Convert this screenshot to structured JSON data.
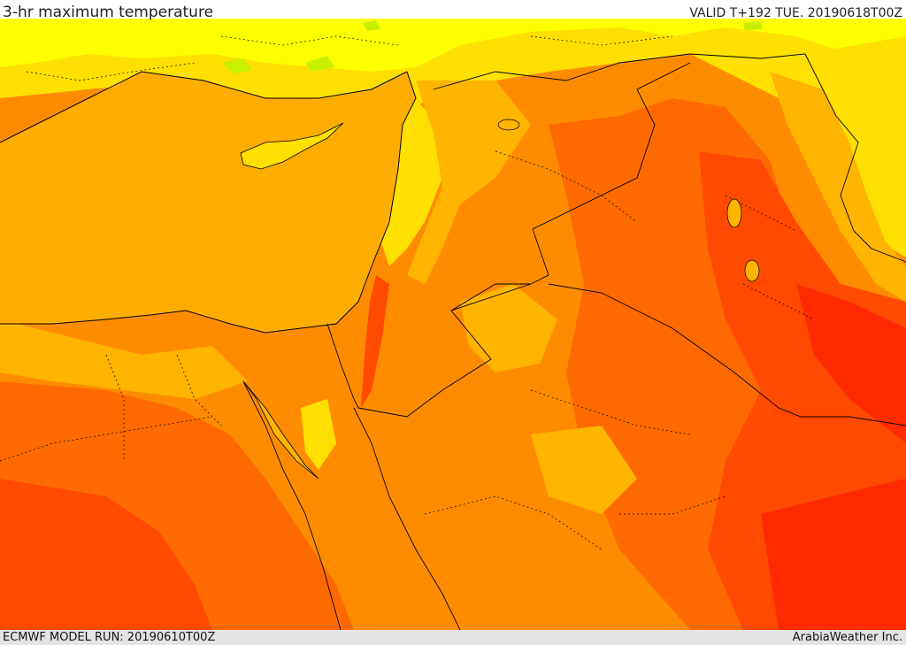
{
  "header": {
    "field_title": "3-hr maximum temperature",
    "valid_time": "VALID T+192 TUE. 20190618T00Z"
  },
  "footer": {
    "model_run": "ECMWF MODEL RUN: 20190610T00Z",
    "credit": "ArabiaWeather Inc."
  },
  "map": {
    "region": "Eastern Mediterranean and Middle East",
    "colors": {
      "sea": "#ffad00",
      "pale_yellow": "#ffff00",
      "yellow_green": "#c8f000",
      "yellow": "#ffe000",
      "light_orange": "#ffb400",
      "orange": "#ff8c00",
      "dark_orange": "#ff6a00",
      "red_orange": "#ff4a00",
      "red": "#ff2a00",
      "border": "#000000"
    }
  }
}
